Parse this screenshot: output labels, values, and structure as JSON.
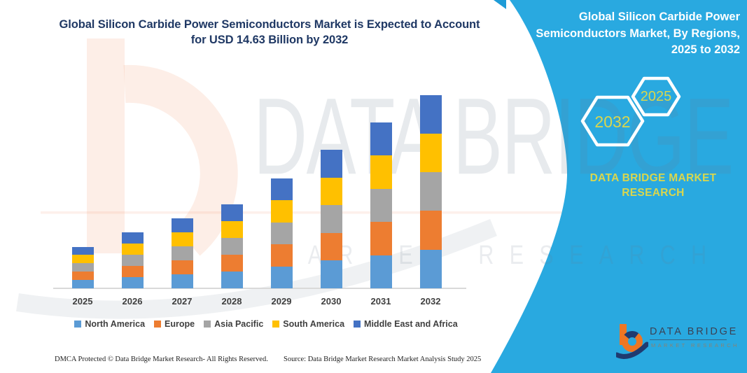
{
  "title": {
    "lines": [
      "Global Silicon Carbide Power Semiconductors Market is Expected to Account",
      "for USD 14.63 Billion by 2032"
    ],
    "color": "#1F3864"
  },
  "side_panel": {
    "heading_lines": [
      "Global Silicon Carbide Power",
      "Semiconductors Market, By Regions,",
      "2025 to 2032"
    ],
    "hexagons": [
      {
        "label": "2032"
      },
      {
        "label": "2025"
      }
    ],
    "brand_lines": [
      "DATA BRIDGE MARKET",
      "RESEARCH"
    ],
    "panel_color": "#29A9E0",
    "accent_yellow": "#D9D64E"
  },
  "watermark": {
    "line1": "DATA BRIDGE",
    "line2": "MARKET RESEARCH"
  },
  "chart_data": {
    "type": "bar",
    "stacked": true,
    "title": "Global Silicon Carbide Power Semiconductors Market, By Regions, 2025 to 2032",
    "unit": "USD Billion",
    "categories": [
      "2025",
      "2026",
      "2027",
      "2028",
      "2029",
      "2030",
      "2031",
      "2032"
    ],
    "series": [
      {
        "name": "North America",
        "color": "#5B9BD5",
        "values": [
          0.63,
          0.85,
          1.06,
          1.27,
          1.67,
          2.1,
          2.51,
          2.93
        ]
      },
      {
        "name": "Europe",
        "color": "#ED7D31",
        "values": [
          0.63,
          0.85,
          1.06,
          1.27,
          1.67,
          2.1,
          2.51,
          2.93
        ]
      },
      {
        "name": "Asia Pacific",
        "color": "#A5A5A5",
        "values": [
          0.63,
          0.85,
          1.06,
          1.27,
          1.67,
          2.1,
          2.51,
          2.93
        ]
      },
      {
        "name": "South America",
        "color": "#FFC000",
        "values": [
          0.63,
          0.85,
          1.06,
          1.27,
          1.67,
          2.1,
          2.51,
          2.93
        ]
      },
      {
        "name": "Middle East and Africa",
        "color": "#4472C4",
        "values": [
          0.63,
          0.85,
          1.06,
          1.27,
          1.67,
          2.1,
          2.51,
          2.93
        ]
      }
    ],
    "totals": [
      3.13,
      4.24,
      5.3,
      6.36,
      8.37,
      10.49,
      12.56,
      14.63
    ],
    "ylim": [
      0,
      15
    ],
    "grid": false,
    "y_axis_visible": false,
    "legend_position": "bottom"
  },
  "footer": {
    "left": "DMCA Protected © Data Bridge Market Research-  All Rights Reserved.",
    "source": "Source: Data Bridge Market Research  Market Analysis Study 2025"
  },
  "logo": {
    "title": "DATA BRIDGE",
    "subtitle": "MARKET RESEARCH"
  }
}
